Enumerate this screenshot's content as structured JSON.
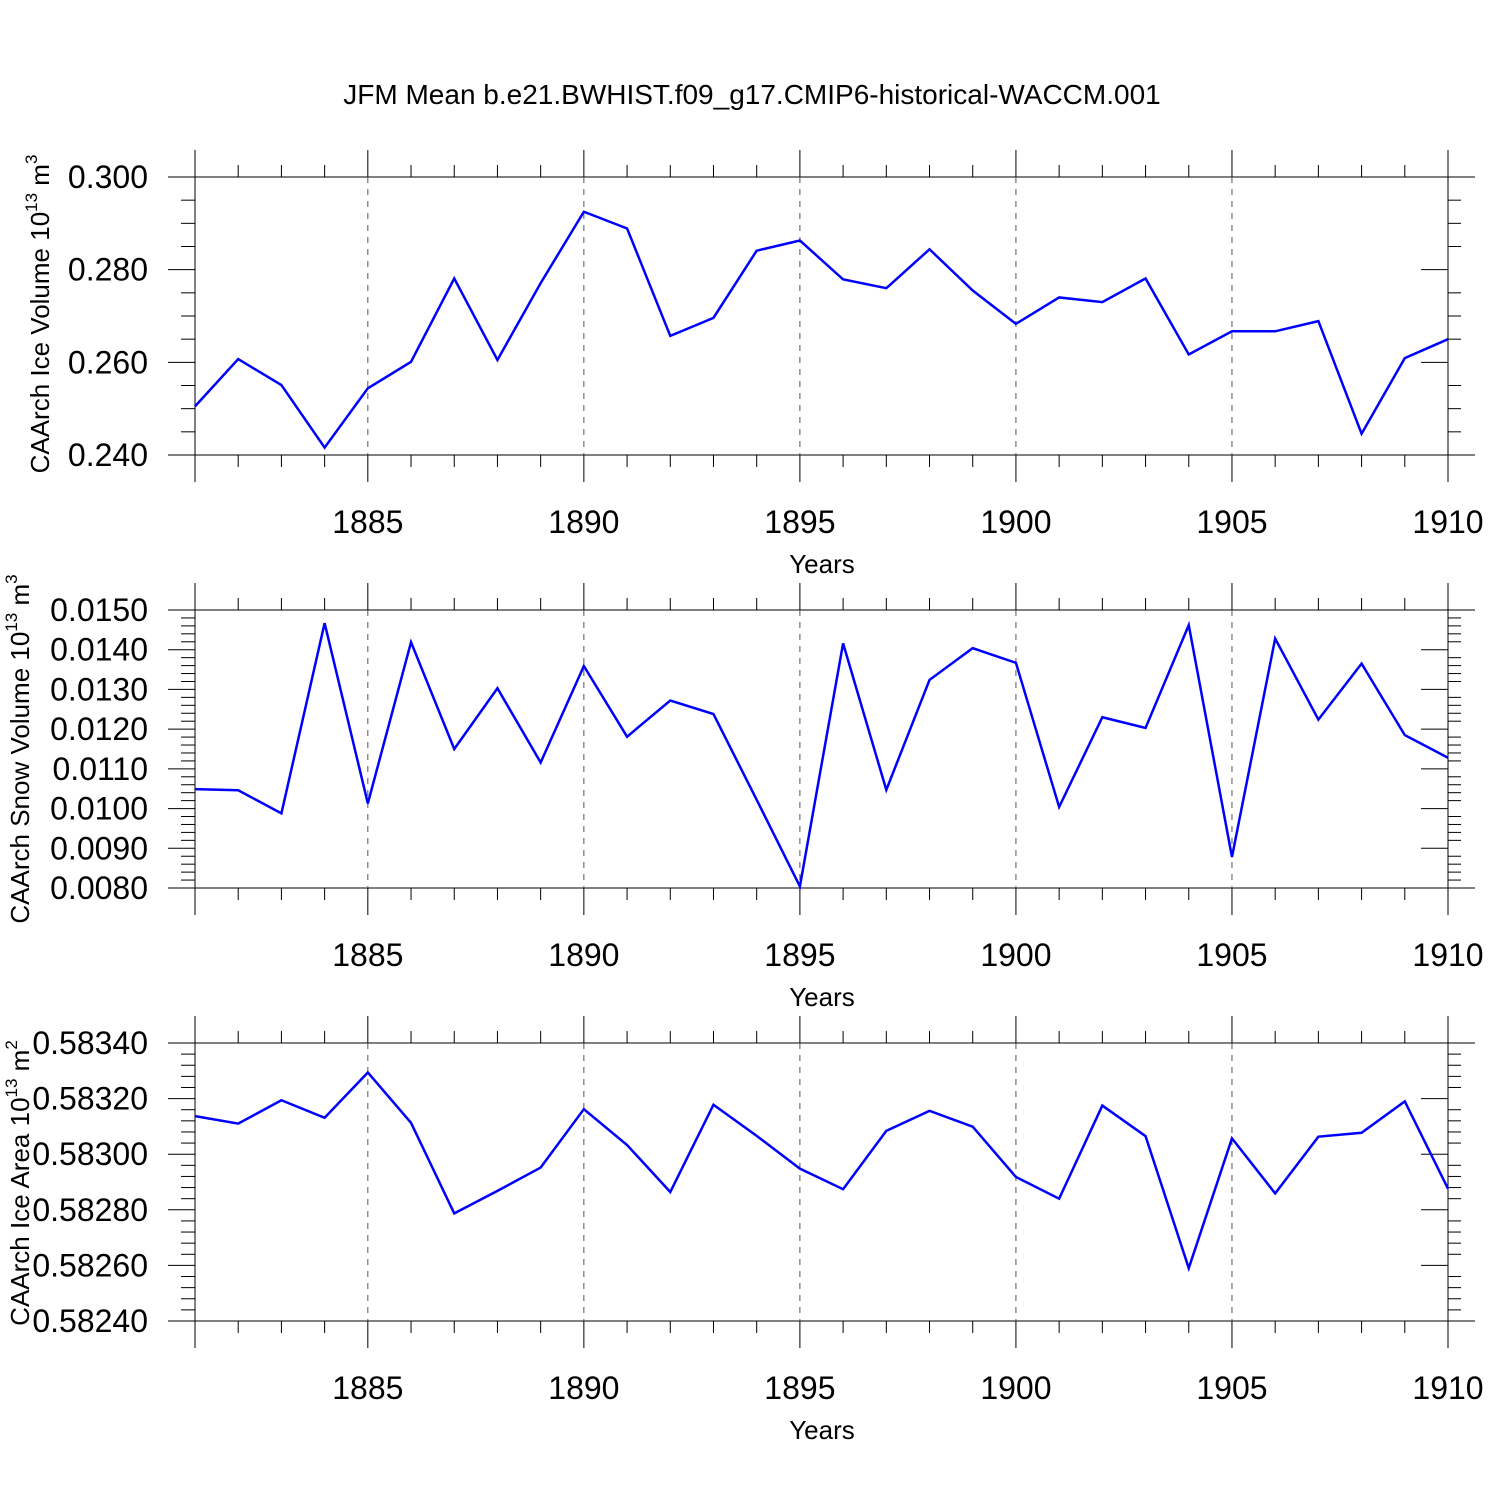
{
  "title": "JFM Mean b.e21.BWHIST.f09_g17.CMIP6-historical-WACCM.001",
  "colors": {
    "series": "#0000ff",
    "axis": "#000000",
    "grid": "#555555"
  },
  "chart_data": [
    {
      "type": "line",
      "ylabel_main": "CAArch Ice Volume 10",
      "ylabel_exp": "13",
      "ylabel_unit": " m",
      "ylabel_unit_exp": "3",
      "xlabel": "Years",
      "xlim": [
        1881,
        1910
      ],
      "ylim": [
        0.24,
        0.3
      ],
      "xticks": [
        1885,
        1890,
        1895,
        1900,
        1905,
        1910
      ],
      "yticks": [
        0.24,
        0.26,
        0.28,
        0.3
      ],
      "ytick_labels": [
        "0.240",
        "0.260",
        "0.280",
        "0.300"
      ],
      "yminor": 0.005,
      "grid": "vertical dashed at major x ticks",
      "x": [
        1881,
        1882,
        1883,
        1884,
        1885,
        1886,
        1887,
        1888,
        1889,
        1890,
        1891,
        1892,
        1893,
        1894,
        1895,
        1896,
        1897,
        1898,
        1899,
        1900,
        1901,
        1902,
        1903,
        1904,
        1905,
        1906,
        1907,
        1908,
        1909,
        1910
      ],
      "values": [
        0.2505,
        0.2607,
        0.2551,
        0.2416,
        0.2544,
        0.2601,
        0.2781,
        0.2605,
        0.2771,
        0.2925,
        0.2889,
        0.2657,
        0.2696,
        0.2841,
        0.2863,
        0.2779,
        0.276,
        0.2844,
        0.2755,
        0.2683,
        0.274,
        0.273,
        0.2781,
        0.2617,
        0.2667,
        0.2667,
        0.2689,
        0.2446,
        0.2609,
        0.265
      ]
    },
    {
      "type": "line",
      "ylabel_main": "CAArch Snow Volume 10",
      "ylabel_exp": "13",
      "ylabel_unit": " m",
      "ylabel_unit_exp": "3",
      "xlabel": "Years",
      "xlim": [
        1881,
        1910
      ],
      "ylim": [
        0.008,
        0.015
      ],
      "xticks": [
        1885,
        1890,
        1895,
        1900,
        1905,
        1910
      ],
      "yticks": [
        0.008,
        0.009,
        0.01,
        0.011,
        0.012,
        0.013,
        0.014,
        0.015
      ],
      "ytick_labels": [
        "0.0080",
        "0.0090",
        "0.0100",
        "0.0110",
        "0.0120",
        "0.0130",
        "0.0140",
        "0.0150"
      ],
      "yminor": 0.0002,
      "grid": "vertical dashed at major x ticks",
      "x": [
        1881,
        1882,
        1883,
        1884,
        1885,
        1886,
        1887,
        1888,
        1889,
        1890,
        1891,
        1892,
        1893,
        1894,
        1895,
        1896,
        1897,
        1898,
        1899,
        1900,
        1901,
        1902,
        1903,
        1904,
        1905,
        1906,
        1907,
        1908,
        1909,
        1910
      ],
      "values": [
        0.01049,
        0.01046,
        0.00988,
        0.01467,
        0.01013,
        0.01419,
        0.0115,
        0.01303,
        0.01116,
        0.01359,
        0.01181,
        0.01272,
        0.01238,
        0.01022,
        0.00804,
        0.01416,
        0.01047,
        0.01324,
        0.01404,
        0.01367,
        0.01004,
        0.0123,
        0.01203,
        0.01462,
        0.00878,
        0.01428,
        0.01224,
        0.01365,
        0.01185,
        0.01128
      ]
    },
    {
      "type": "line",
      "ylabel_main": "CAArch Ice Area 10",
      "ylabel_exp": "13",
      "ylabel_unit": " m",
      "ylabel_unit_exp": "2",
      "xlabel": "Years",
      "xlim": [
        1881,
        1910
      ],
      "ylim": [
        0.5824,
        0.5834
      ],
      "xticks": [
        1885,
        1890,
        1895,
        1900,
        1905,
        1910
      ],
      "yticks": [
        0.5824,
        0.5826,
        0.5828,
        0.583,
        0.5832,
        0.5834
      ],
      "ytick_labels": [
        "0.58240",
        "0.58260",
        "0.58280",
        "0.58300",
        "0.58320",
        "0.58340"
      ],
      "yminor": 4e-05,
      "grid": "vertical dashed at major x ticks",
      "x": [
        1881,
        1882,
        1883,
        1884,
        1885,
        1886,
        1887,
        1888,
        1889,
        1890,
        1891,
        1892,
        1893,
        1894,
        1895,
        1896,
        1897,
        1898,
        1899,
        1900,
        1901,
        1902,
        1903,
        1904,
        1905,
        1906,
        1907,
        1908,
        1909,
        1910
      ],
      "values": [
        0.583137,
        0.58311,
        0.583194,
        0.583131,
        0.583294,
        0.583113,
        0.582787,
        0.582868,
        0.582952,
        0.583162,
        0.583033,
        0.582864,
        0.583178,
        0.583066,
        0.582948,
        0.582874,
        0.583084,
        0.583156,
        0.583099,
        0.582918,
        0.58284,
        0.583175,
        0.583065,
        0.58259,
        0.583057,
        0.582859,
        0.583063,
        0.583077,
        0.58319,
        0.582876
      ]
    }
  ]
}
